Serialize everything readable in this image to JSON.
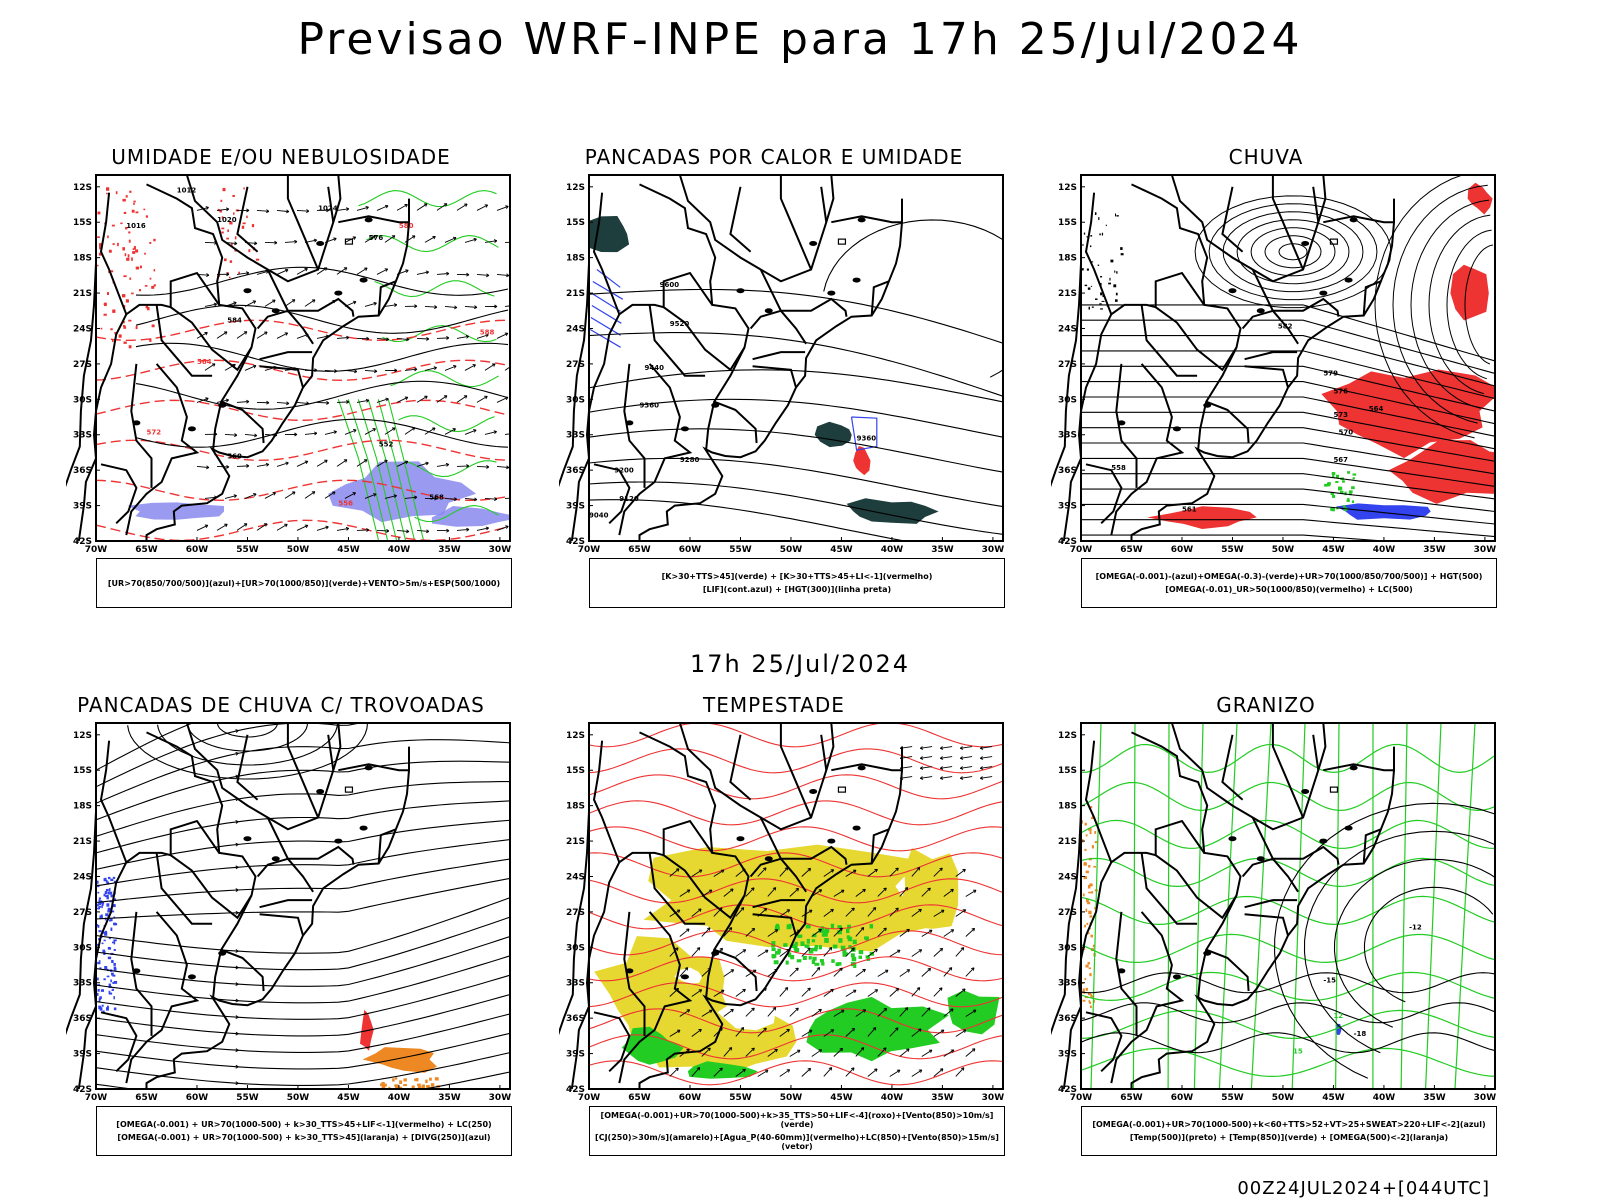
{
  "title": "Previsao WRF-INPE  para 17h 25/Jul/2024",
  "mid_title": "17h 25/Jul/2024",
  "footer": "00Z24JUL2024+[044UTC]",
  "lat_labels": [
    "12S",
    "15S",
    "18S",
    "21S",
    "24S",
    "27S",
    "30S",
    "33S",
    "36S",
    "39S",
    "42S"
  ],
  "lon_labels": [
    "70W",
    "65W",
    "60W",
    "55W",
    "50W",
    "45W",
    "40W",
    "35W",
    "30W"
  ],
  "panels": [
    {
      "title": "UMIDADE E/OU NEBULOSIDADE",
      "legend": [
        "[UR>70(850/700/500)](azul)+[UR>70(1000/850)](verde)+VENTO>5m/s+ESP(500/1000)"
      ]
    },
    {
      "title": "PANCADAS POR CALOR E UMIDADE",
      "legend": [
        "[K>30+TTS>45](verde) + [K>30+TTS>45+LI<-1](vermelho)",
        "[LIF](cont.azul) + [HGT(300)](linha preta)"
      ]
    },
    {
      "title": "CHUVA",
      "legend": [
        "[OMEGA(-0.001)-(azul)+OMEGA(-0.3)-(verde)+UR>70(1000/850/700/500)] + HGT(500)",
        "[OMEGA(-0.01)_UR>50(1000/850)(vermelho) + LC(500)"
      ]
    },
    {
      "title": "PANCADAS DE CHUVA C/ TROVOADAS",
      "legend": [
        "[OMEGA(-0.001) + UR>70(1000-500) + k>30_TTS>45+LIF<-1](vermelho) + LC(250)",
        "[OMEGA(-0.001) + UR>70(1000-500) + k>30_TTS>45](laranja) + [DIVG(250)](azul)"
      ]
    },
    {
      "title": "TEMPESTADE",
      "legend": [
        "[OMEGA(-0.001)+UR>70(1000-500)+k>35_TTS>50+LIF<-4](roxo)+[Vento(850)>10m/s](verde)",
        "[CJ(250)>30m/s](amarelo)+[Agua_P(40-60mm)](vermelho)+LC(850)+[Vento(850)>15m/s](vetor)"
      ]
    },
    {
      "title": "GRANIZO",
      "legend": [
        "[OMEGA(-0.001)+UR>70(1000-500)+k<60+TTS>52+VT>25+SWEAT>220+LIF<-2](azul)",
        "[Temp(500)](preto) + [Temp(850)](verde) + [OMEGA(500)<-2](laranja)"
      ]
    }
  ],
  "contour_labels": {
    "p1": [
      "1012",
      "1016",
      "1020",
      "1024",
      "576",
      "580",
      "584",
      "588",
      "552",
      "556",
      "560",
      "564",
      "568",
      "572"
    ],
    "p2": [
      "9600",
      "9520",
      "9440",
      "9360",
      "9280",
      "9200",
      "9120",
      "9040",
      "9360"
    ],
    "p3": [
      "582",
      "579",
      "576",
      "573",
      "570",
      "567",
      "564",
      "561",
      "558"
    ],
    "p6": [
      "-12",
      "-15",
      "-18",
      "15",
      "12"
    ]
  },
  "colors": {
    "red": "#ee3333",
    "green": "#22cc22",
    "blue": "#3344ee",
    "lavender": "#8888ee",
    "yellow": "#e6d830",
    "orange": "#ee8822",
    "darkteal": "#1e3d3d"
  }
}
